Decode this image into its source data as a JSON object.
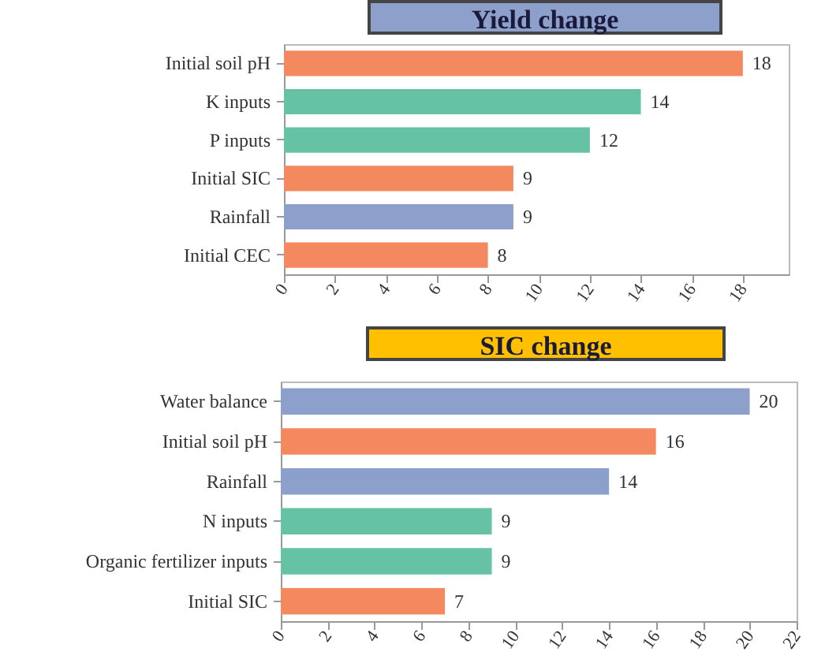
{
  "chart_data": [
    {
      "type": "bar",
      "title": "Yield change",
      "orientation": "horizontal",
      "categories": [
        "Initial soil pH",
        "K inputs",
        "P inputs",
        "Initial SIC",
        "Rainfall",
        "Initial  CEC"
      ],
      "values": [
        18,
        14,
        12,
        9,
        9,
        8
      ],
      "colors": [
        "#f4895f",
        "#66c2a5",
        "#66c2a5",
        "#f4895f",
        "#8da0cb",
        "#f4895f"
      ],
      "xlim": [
        0,
        19.8
      ],
      "xticks": [
        0,
        2,
        4,
        6,
        8,
        10,
        12,
        14,
        16,
        18
      ],
      "data_labels": true
    },
    {
      "type": "bar",
      "title": "SIC change",
      "orientation": "horizontal",
      "categories": [
        "Water balance",
        "Initial soil pH",
        "Rainfall",
        "N inputs",
        "Organic fertilizer inputs",
        "Initial SIC"
      ],
      "values": [
        20,
        16,
        14,
        9,
        9,
        7
      ],
      "colors": [
        "#8da0cb",
        "#f4895f",
        "#8da0cb",
        "#66c2a5",
        "#66c2a5",
        "#f4895f"
      ],
      "xlim": [
        0,
        22
      ],
      "xticks": [
        0,
        2,
        4,
        6,
        8,
        10,
        12,
        14,
        16,
        18,
        20,
        22
      ],
      "data_labels": true
    }
  ]
}
